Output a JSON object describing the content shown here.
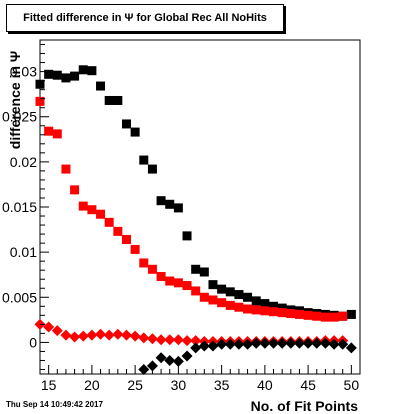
{
  "timestamp": "Thu Sep 14 10:49:42 2017",
  "chart_data": {
    "type": "scatter",
    "title": "Fitted difference in Ψ  for Global Rec All NoHits",
    "xlabel": "No. of Fit Points",
    "ylabel": "difference in Ψ",
    "xlim": [
      14,
      51
    ],
    "ylim": [
      -0.0035,
      0.0335
    ],
    "x_ticks": [
      15,
      20,
      25,
      30,
      35,
      40,
      45,
      50
    ],
    "y_ticks": [
      {
        "value": 0,
        "label": "0"
      },
      {
        "value": 0.005,
        "label": "0.005"
      },
      {
        "value": 0.01,
        "label": "0.01"
      },
      {
        "value": 0.015,
        "label": "0.015"
      },
      {
        "value": 0.02,
        "label": "0.02"
      },
      {
        "value": 0.025,
        "label": "0.025"
      },
      {
        "value": 0.03,
        "label": "0.03"
      }
    ],
    "grid": false,
    "legend": "none",
    "series": [
      {
        "marker": "square",
        "color": "#000000",
        "x": [
          14,
          15,
          16,
          17,
          18,
          19,
          20,
          21,
          22,
          23,
          24,
          25,
          26,
          27,
          28,
          29,
          30,
          31,
          32,
          33,
          34,
          35,
          36,
          37,
          38,
          39,
          40,
          41,
          42,
          43,
          44,
          45,
          46,
          47,
          48,
          49,
          50
        ],
        "y": [
          0.0286,
          0.0297,
          0.0296,
          0.0293,
          0.0295,
          0.0302,
          0.0301,
          0.0284,
          0.0268,
          0.0268,
          0.0242,
          0.0233,
          0.0202,
          0.0192,
          0.0157,
          0.0153,
          0.0149,
          0.0118,
          0.0081,
          0.0078,
          0.0064,
          0.0059,
          0.0056,
          0.0053,
          0.005,
          0.0046,
          0.0043,
          0.004,
          0.0038,
          0.0036,
          0.0035,
          0.0033,
          0.0032,
          0.0031,
          0.003,
          0.0029,
          0.0031
        ]
      },
      {
        "marker": "square",
        "color": "#ff0000",
        "x": [
          14,
          15,
          16,
          17,
          18,
          19,
          20,
          21,
          22,
          23,
          24,
          25,
          26,
          27,
          28,
          29,
          30,
          31,
          32,
          33,
          34,
          35,
          36,
          37,
          38,
          39,
          40,
          41,
          42,
          43,
          44,
          45,
          46,
          47,
          48,
          49
        ],
        "y": [
          0.0267,
          0.0234,
          0.0231,
          0.0192,
          0.0169,
          0.0151,
          0.0147,
          0.0142,
          0.0133,
          0.0123,
          0.0114,
          0.0103,
          0.0088,
          0.0081,
          0.0073,
          0.0068,
          0.0066,
          0.0063,
          0.0057,
          0.005,
          0.0047,
          0.0044,
          0.0041,
          0.0039,
          0.0037,
          0.0036,
          0.0035,
          0.0034,
          0.0033,
          0.0032,
          0.0031,
          0.003,
          0.0029,
          0.0028,
          0.0028,
          0.0029
        ]
      },
      {
        "marker": "diamond",
        "color": "#ff0000",
        "x": [
          14,
          15,
          16,
          17,
          18,
          19,
          20,
          21,
          22,
          23,
          24,
          25,
          26,
          27,
          28,
          29,
          30,
          31,
          32,
          33,
          34,
          35,
          36,
          37,
          38,
          39,
          40,
          41,
          42,
          43,
          44,
          45,
          46,
          47,
          48,
          49
        ],
        "y": [
          0.002,
          0.0017,
          0.0013,
          0.0008,
          0.0006,
          0.0007,
          0.0008,
          0.0009,
          0.0008,
          0.0009,
          0.0008,
          0.0007,
          0.0005,
          0.0004,
          0.0003,
          0.0003,
          0.0003,
          0.0002,
          0.0002,
          0.0001,
          0.0001,
          0.0001,
          0.0001,
          0.0001,
          0.0001,
          0.0001,
          0.0001,
          0.0001,
          0.0001,
          0.0001,
          0.0001,
          0.0001,
          0.0001,
          0.0002,
          0.0002,
          0.0002
        ]
      },
      {
        "marker": "diamond",
        "color": "#000000",
        "x": [
          26,
          27,
          28,
          29,
          30,
          31,
          32,
          33,
          34,
          35,
          36,
          37,
          38,
          39,
          40,
          41,
          42,
          43,
          44,
          45,
          46,
          47,
          48,
          49,
          50
        ],
        "y": [
          -0.003,
          -0.0026,
          -0.0017,
          -0.002,
          -0.0021,
          -0.0015,
          -0.0006,
          -0.0004,
          -0.0004,
          -0.0002,
          -0.0002,
          -0.0002,
          -0.0002,
          -0.0001,
          -0.0001,
          -0.0001,
          -0.0001,
          -0.0001,
          -0.0001,
          -0.0001,
          -0.0001,
          -0.0001,
          -0.0002,
          -0.0002,
          -0.0006
        ]
      }
    ]
  }
}
